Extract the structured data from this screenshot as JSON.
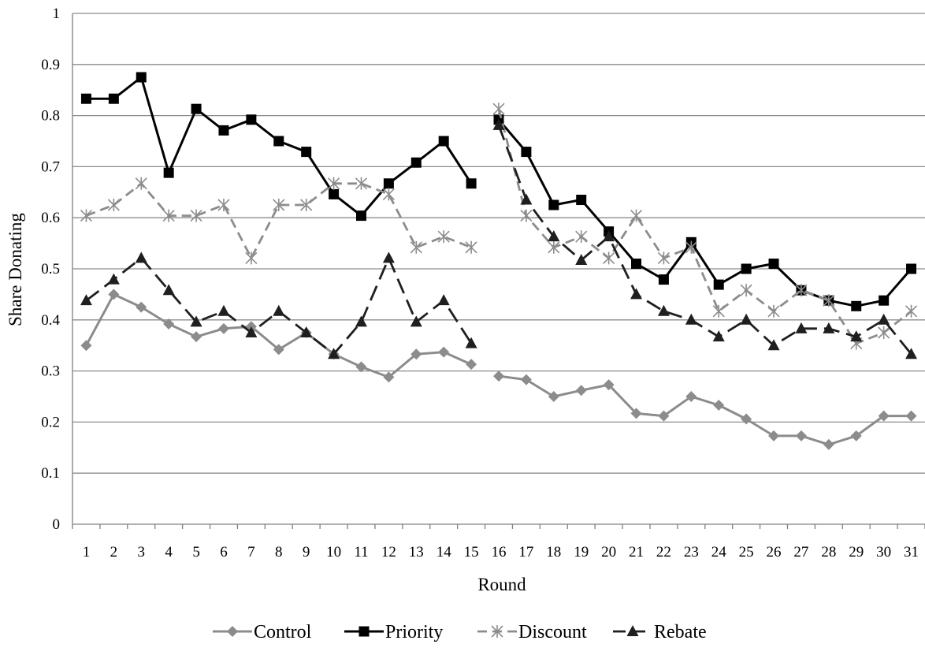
{
  "chart_data": {
    "type": "line",
    "title": "",
    "xlabel": "Round",
    "ylabel": "Share Donating",
    "ylim": [
      0,
      1
    ],
    "yticks": [
      "0",
      "0.1",
      "0.2",
      "0.3",
      "0.4",
      "0.5",
      "0.6",
      "0.7",
      "0.8",
      "0.9",
      "1"
    ],
    "categories": [
      "1",
      "2",
      "3",
      "4",
      "5",
      "6",
      "7",
      "8",
      "9",
      "10",
      "11",
      "12",
      "13",
      "14",
      "15",
      "16",
      "17",
      "18",
      "19",
      "20",
      "21",
      "22",
      "23",
      "24",
      "25",
      "26",
      "27",
      "28",
      "29",
      "30",
      "31"
    ],
    "grid": true,
    "legend": "bottom",
    "break_after_round": 15,
    "series": [
      {
        "name": "Control",
        "color": "#8c8c8c",
        "line": "solid",
        "marker": "diamond",
        "values": [
          0.35,
          0.45,
          0.425,
          0.392,
          0.367,
          0.383,
          0.387,
          0.342,
          0.375,
          0.333,
          0.308,
          0.288,
          0.333,
          0.337,
          0.313,
          0.29,
          0.283,
          0.25,
          0.262,
          0.273,
          0.217,
          0.212,
          0.25,
          0.233,
          0.206,
          0.173,
          0.173,
          0.156,
          0.173,
          0.212,
          0.212
        ]
      },
      {
        "name": "Priority",
        "color": "#000000",
        "line": "solid",
        "marker": "square",
        "values": [
          0.833,
          0.833,
          0.875,
          0.688,
          0.813,
          0.771,
          0.792,
          0.75,
          0.729,
          0.646,
          0.604,
          0.667,
          0.708,
          0.75,
          0.667,
          0.792,
          0.729,
          0.625,
          0.635,
          0.573,
          0.51,
          0.479,
          0.552,
          0.469,
          0.5,
          0.51,
          0.458,
          0.438,
          0.427,
          0.438,
          0.5
        ]
      },
      {
        "name": "Discount",
        "color": "#8c8c8c",
        "line": "dashed",
        "marker": "asterisk",
        "values": [
          0.604,
          0.625,
          0.667,
          0.604,
          0.604,
          0.625,
          0.521,
          0.625,
          0.625,
          0.667,
          0.667,
          0.646,
          0.542,
          0.563,
          0.542,
          0.813,
          0.604,
          0.542,
          0.563,
          0.521,
          0.604,
          0.521,
          0.542,
          0.417,
          0.458,
          0.417,
          0.458,
          0.438,
          0.354,
          0.375,
          0.417
        ]
      },
      {
        "name": "Rebate",
        "color": "#1f1f1f",
        "line": "longdash",
        "marker": "triangle",
        "values": [
          0.438,
          0.479,
          0.521,
          0.458,
          0.396,
          0.417,
          0.375,
          0.417,
          0.375,
          0.333,
          0.396,
          0.521,
          0.396,
          0.438,
          0.354,
          0.781,
          0.635,
          0.563,
          0.517,
          0.563,
          0.45,
          0.417,
          0.4,
          0.367,
          0.4,
          0.35,
          0.383,
          0.383,
          0.367,
          0.4,
          0.333
        ]
      }
    ]
  }
}
